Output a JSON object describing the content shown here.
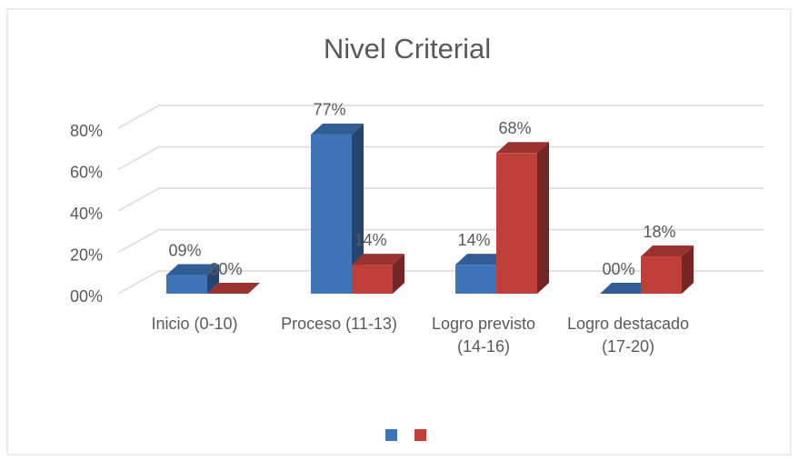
{
  "chart_data": {
    "type": "bar3d",
    "title": "Nivel Criterial",
    "categories": [
      "Inicio (0-10)",
      "Proceso (11-13)",
      "Logro previsto (14-16)",
      "Logro destacado (17-20)"
    ],
    "series": [
      {
        "color": "#3f74b9",
        "values": [
          9,
          77,
          14,
          0
        ],
        "value_labels": [
          "09%",
          "77%",
          "14%",
          "00%"
        ]
      },
      {
        "color": "#c03f3b",
        "values": [
          0,
          14,
          68,
          18
        ],
        "value_labels": [
          "00%",
          "14%",
          "68%",
          "18%"
        ]
      }
    ],
    "ylim": [
      0,
      80
    ],
    "yticks": [
      {
        "value": 0,
        "label": "00%"
      },
      {
        "value": 20,
        "label": "20%"
      },
      {
        "value": 40,
        "label": "40%"
      },
      {
        "value": 60,
        "label": "60%"
      },
      {
        "value": 80,
        "label": "80%"
      }
    ],
    "grid": true,
    "legend": "bottom"
  }
}
